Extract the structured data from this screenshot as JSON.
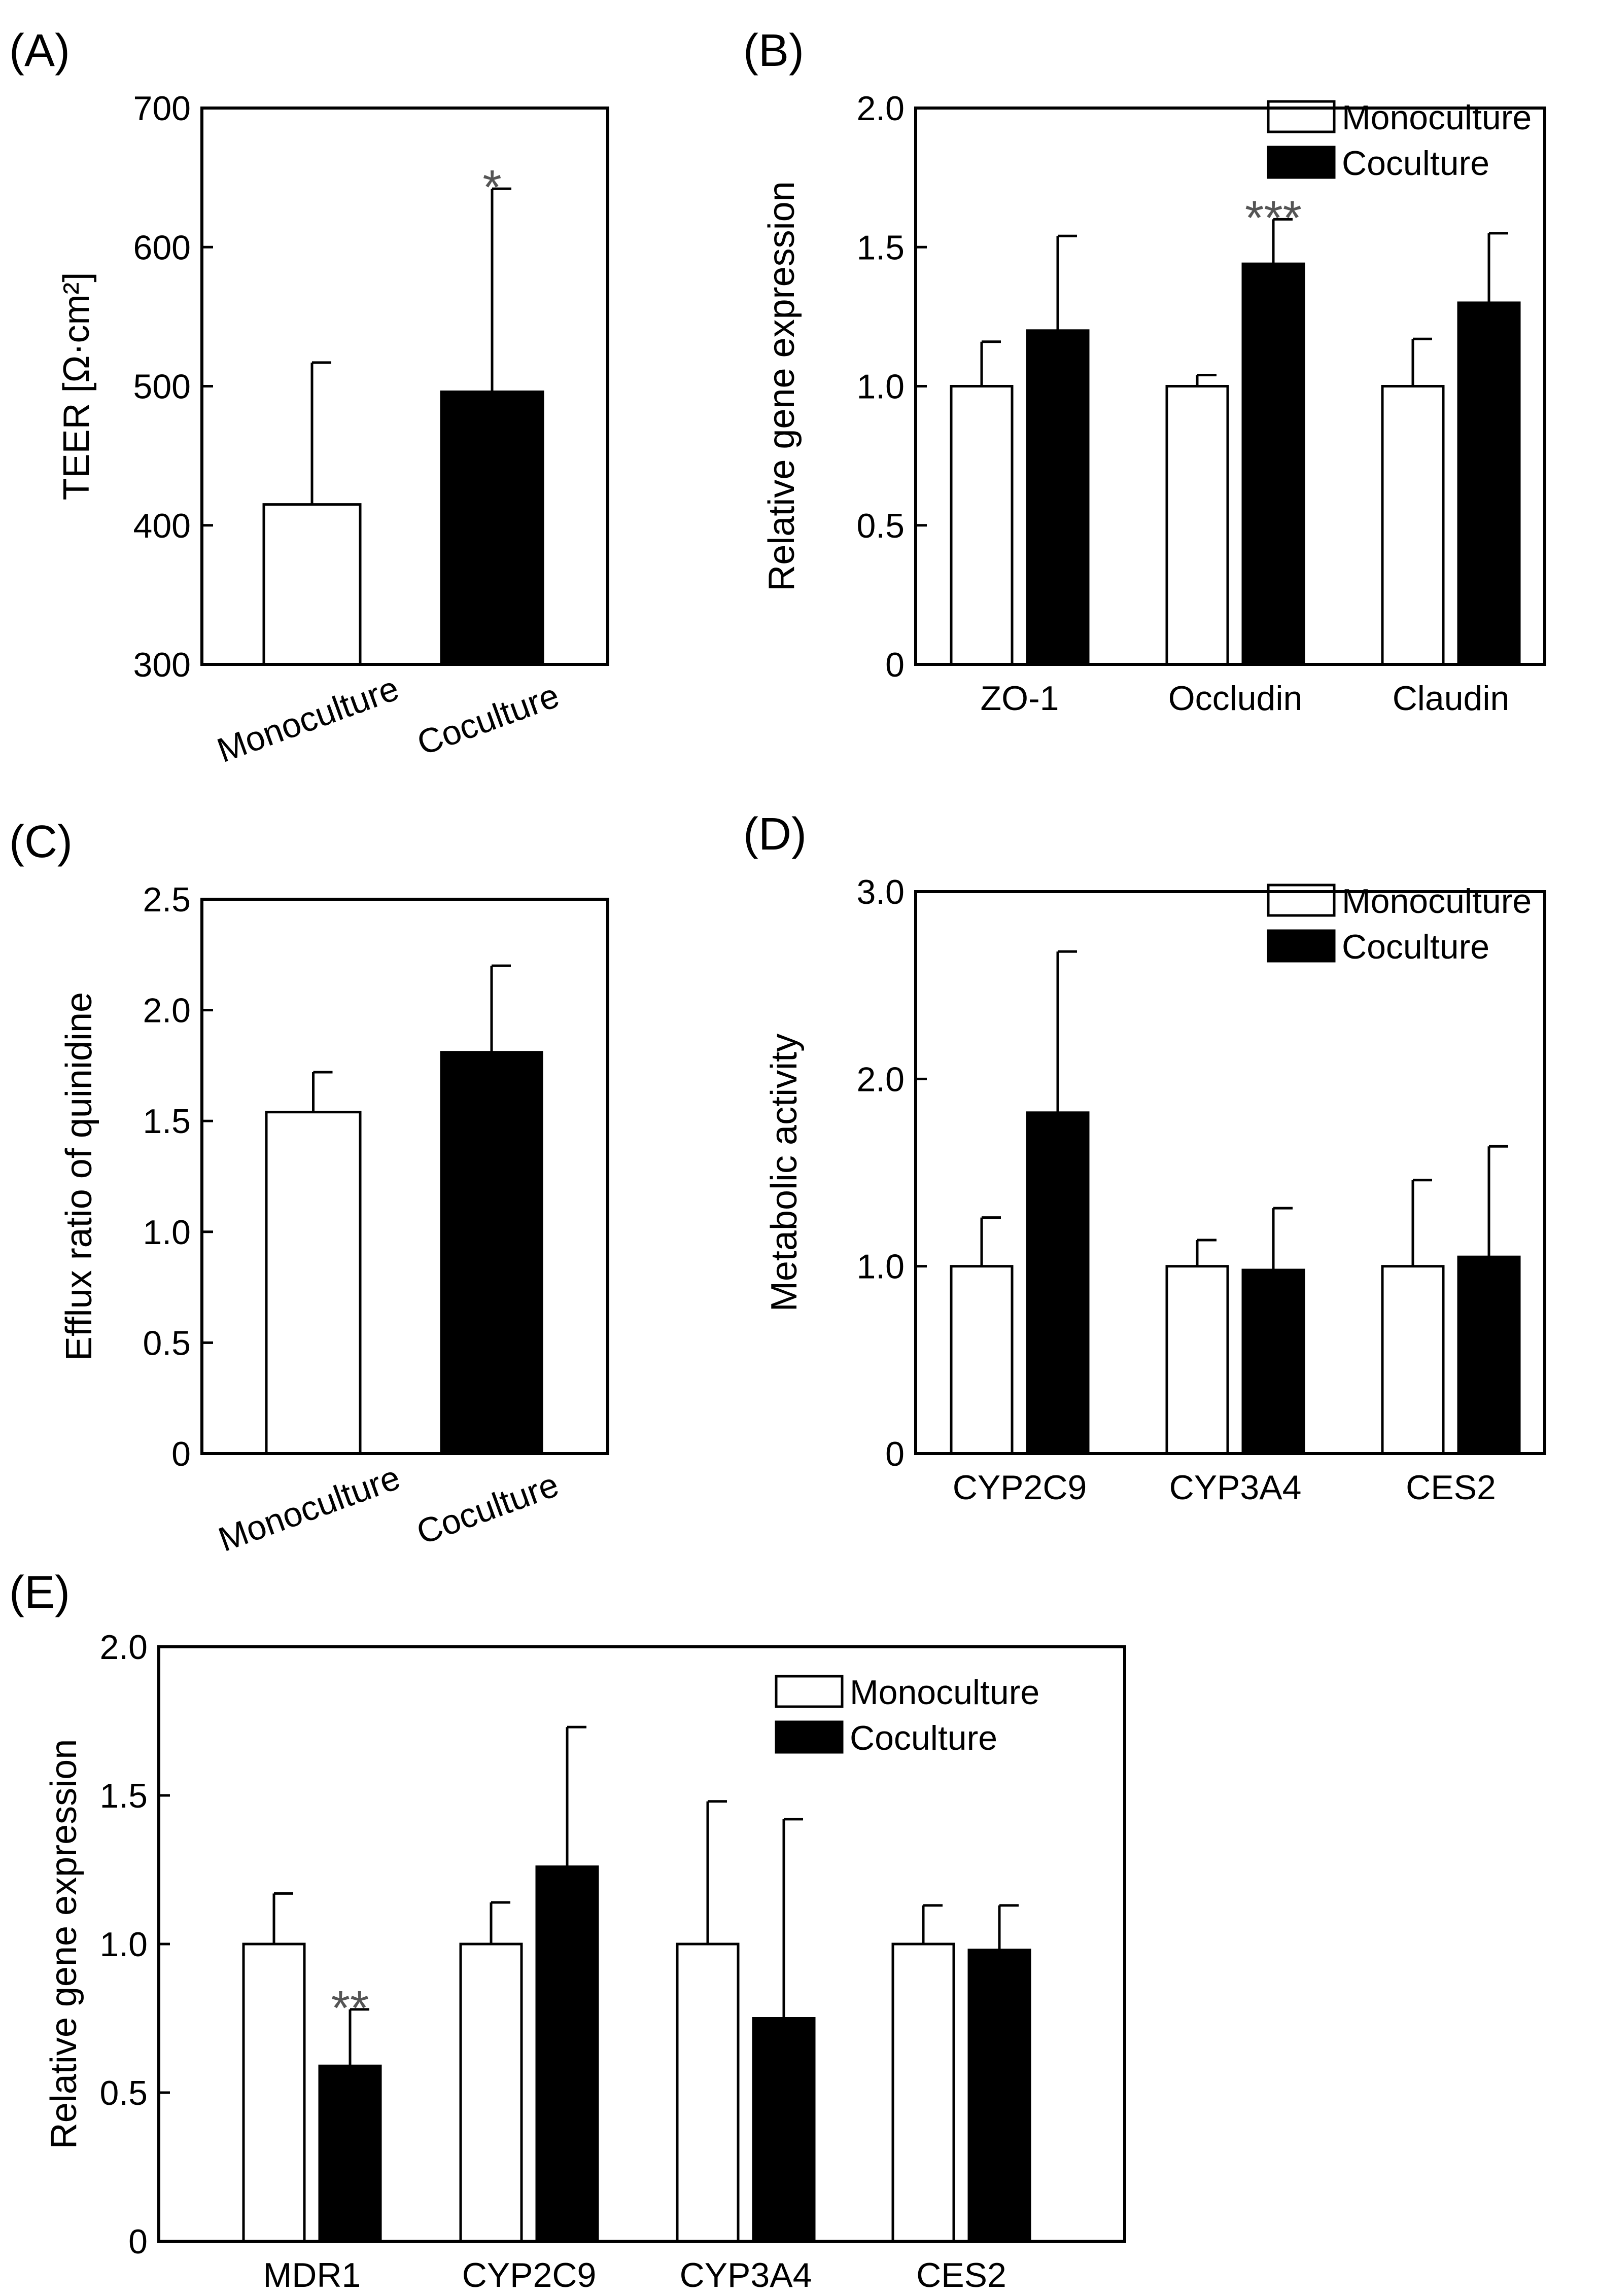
{
  "colors": {
    "monoculture": "#ffffff",
    "coculture": "#000000",
    "axis": "#000000",
    "significance": "#555555"
  },
  "chart_data": [
    {
      "panel": "(A)",
      "type": "bar",
      "ylabel": "TEER [Ω·cm²]",
      "ylim": [
        300,
        700
      ],
      "yticks": [
        300,
        400,
        500,
        600,
        700
      ],
      "ytick_labels": [
        "300",
        "400",
        "500",
        "600",
        "700"
      ],
      "categories": [
        "Monoculture",
        "Coculture"
      ],
      "category_rotated": true,
      "series": [
        {
          "name": "Monoculture",
          "color": "#ffffff",
          "values": [
            415,
            null
          ],
          "errors": [
            102,
            null
          ],
          "significance": [
            "",
            ""
          ]
        },
        {
          "name": "Coculture",
          "color": "#000000",
          "values": [
            null,
            496
          ],
          "errors": [
            null,
            146
          ],
          "significance": [
            "",
            "*"
          ]
        }
      ],
      "legend": []
    },
    {
      "panel": "(B)",
      "type": "bar",
      "ylabel": "Relative gene expression",
      "ylim": [
        0,
        2.0
      ],
      "yticks": [
        0,
        0.5,
        1.0,
        1.5,
        2.0
      ],
      "ytick_labels": [
        "0",
        "0.5",
        "1.0",
        "1.5",
        "2.0"
      ],
      "categories": [
        "ZO-1",
        "Occludin",
        "Claudin"
      ],
      "category_rotated": false,
      "series": [
        {
          "name": "Monoculture",
          "color": "#ffffff",
          "values": [
            1.0,
            1.0,
            1.0
          ],
          "errors": [
            0.16,
            0.04,
            0.17
          ],
          "significance": [
            "",
            "",
            ""
          ]
        },
        {
          "name": "Coculture",
          "color": "#000000",
          "values": [
            1.2,
            1.44,
            1.3
          ],
          "errors": [
            0.34,
            0.16,
            0.25
          ],
          "significance": [
            "",
            "***",
            ""
          ]
        }
      ],
      "legend": [
        "Monoculture",
        "Coculture"
      ]
    },
    {
      "panel": "(C)",
      "type": "bar",
      "ylabel": "Efflux ratio of quinidine",
      "ylim": [
        0,
        2.5
      ],
      "yticks": [
        0,
        0.5,
        1.0,
        1.5,
        2.0,
        2.5
      ],
      "ytick_labels": [
        "0",
        "0.5",
        "1.0",
        "1.5",
        "2.0",
        "2.5"
      ],
      "categories": [
        "Monoculture",
        "Coculture"
      ],
      "category_rotated": true,
      "series": [
        {
          "name": "Monoculture",
          "color": "#ffffff",
          "values": [
            1.54,
            null
          ],
          "errors": [
            0.18,
            null
          ],
          "significance": [
            "",
            ""
          ]
        },
        {
          "name": "Coculture",
          "color": "#000000",
          "values": [
            null,
            1.81
          ],
          "errors": [
            null,
            0.39
          ],
          "significance": [
            "",
            ""
          ]
        }
      ],
      "legend": []
    },
    {
      "panel": "(D)",
      "type": "bar",
      "ylabel": "Metabolic activity",
      "ylim": [
        0,
        3.0
      ],
      "yticks": [
        0,
        1.0,
        2.0,
        3.0
      ],
      "ytick_labels": [
        "0",
        "1.0",
        "2.0",
        "3.0"
      ],
      "categories": [
        "CYP2C9",
        "CYP3A4",
        "CES2"
      ],
      "category_rotated": false,
      "series": [
        {
          "name": "Monoculture",
          "color": "#ffffff",
          "values": [
            1.0,
            1.0,
            1.0
          ],
          "errors": [
            0.26,
            0.14,
            0.46
          ],
          "significance": [
            "",
            "",
            ""
          ]
        },
        {
          "name": "Coculture",
          "color": "#000000",
          "values": [
            1.82,
            0.98,
            1.05
          ],
          "errors": [
            0.86,
            0.33,
            0.59
          ],
          "significance": [
            "",
            "",
            ""
          ]
        }
      ],
      "legend": [
        "Monoculture",
        "Coculture"
      ]
    },
    {
      "panel": "(E)",
      "type": "bar",
      "ylabel": "Relative gene expression",
      "ylim": [
        0,
        2.0
      ],
      "yticks": [
        0,
        0.5,
        1.0,
        1.5,
        2.0
      ],
      "ytick_labels": [
        "0",
        "0.5",
        "1.0",
        "1.5",
        "2.0"
      ],
      "categories": [
        "MDR1",
        "CYP2C9",
        "CYP3A4",
        "CES2"
      ],
      "category_rotated": false,
      "series": [
        {
          "name": "Monoculture",
          "color": "#ffffff",
          "values": [
            1.0,
            1.0,
            1.0,
            1.0
          ],
          "errors": [
            0.17,
            0.14,
            0.48,
            0.13
          ],
          "significance": [
            "",
            "",
            "",
            ""
          ]
        },
        {
          "name": "Coculture",
          "color": "#000000",
          "values": [
            0.59,
            1.26,
            0.75,
            0.98
          ],
          "errors": [
            0.19,
            0.47,
            0.67,
            0.15
          ],
          "significance": [
            "**",
            "",
            "",
            ""
          ]
        }
      ],
      "legend": [
        "Monoculture",
        "Coculture"
      ]
    }
  ]
}
